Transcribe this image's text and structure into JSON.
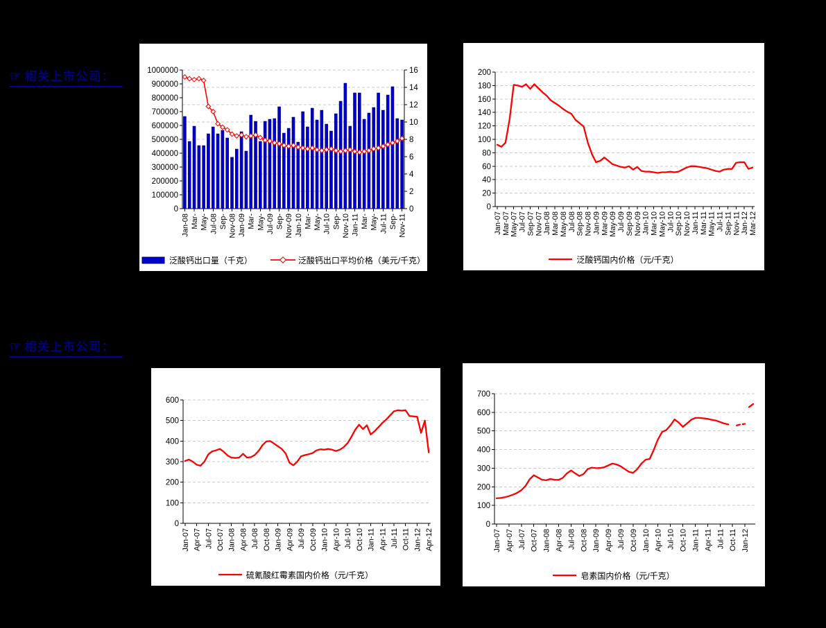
{
  "page": {
    "background_color": "#000000",
    "panel_color": "#FFFFFF"
  },
  "headings": [
    {
      "icon": "☞",
      "text": "相关上市公司："
    },
    {
      "icon": "☞",
      "text": "相关上市公司："
    }
  ],
  "colors": {
    "bar": "#0000CC",
    "bar_edge": "#000060",
    "line": "#FF0000",
    "grid": "#C9C9C9",
    "heading": "#000080"
  },
  "chart_data": [
    {
      "id": "c1",
      "type": "bar",
      "subtype": "bar+line-dual-axis",
      "title": "",
      "xlabel": "",
      "ylabel": "",
      "n_points": 47,
      "x_tick_every": 2,
      "x_tick_labels": [
        "Jan-08",
        "Mar-",
        "May-",
        "Jul-08",
        "Sep-",
        "Nov-08",
        "Jan-09",
        "Mar-",
        "May-",
        "Jul-09",
        "Sep-",
        "Nov-09",
        "Jan-10",
        "Mar-",
        "May-",
        "Jul-10",
        "Sep-",
        "Nov-10",
        "Jan-11",
        "Mar-",
        "May-",
        "Jul-11",
        "Sep-",
        "Nov-11"
      ],
      "left_axis": {
        "min": 0,
        "max": 1000000,
        "step": 100000
      },
      "right_axis": {
        "min": 0,
        "max": 16,
        "step": 2
      },
      "grid_axis": "right",
      "legend_position": "bottom",
      "series": [
        {
          "name": "泛酸钙出口量（千克）",
          "kind": "bar",
          "axis": "left",
          "color": "#0000CC",
          "values": [
            665000,
            485000,
            595000,
            455000,
            455000,
            540000,
            590000,
            540000,
            565000,
            510000,
            370000,
            430000,
            555000,
            415000,
            675000,
            630000,
            485000,
            630000,
            645000,
            650000,
            735000,
            545000,
            580000,
            660000,
            480000,
            700000,
            590000,
            725000,
            640000,
            710000,
            610000,
            560000,
            685000,
            775000,
            905000,
            595000,
            835000,
            835000,
            645000,
            690000,
            730000,
            835000,
            710000,
            820000,
            880000,
            650000,
            640000
          ]
        },
        {
          "name": "泛酸钙出口平均价格（美元/千克）",
          "kind": "line",
          "axis": "right",
          "color": "#FF0000",
          "marker": "diamond",
          "values": [
            15.2,
            15.0,
            14.9,
            15.0,
            14.8,
            11.8,
            11.2,
            9.8,
            9.4,
            9.1,
            8.6,
            8.4,
            8.5,
            8.3,
            8.4,
            8.5,
            8.2,
            7.9,
            7.8,
            7.6,
            7.5,
            7.3,
            7.2,
            7.3,
            7.1,
            7.0,
            6.9,
            7.0,
            6.8,
            6.7,
            6.8,
            6.9,
            6.7,
            6.6,
            6.7,
            6.8,
            6.6,
            6.5,
            6.6,
            6.7,
            6.9,
            7.0,
            7.2,
            7.4,
            7.6,
            7.8,
            8.1
          ]
        }
      ]
    },
    {
      "id": "c2",
      "type": "line",
      "title": "",
      "xlabel": "",
      "ylabel": "",
      "n_points": 63,
      "x_tick_every": 2,
      "x_tick_labels": [
        "Jan-07",
        "Mar-07",
        "May-07",
        "Jul-07",
        "Sep-07",
        "Nov-07",
        "Jan-08",
        "Mar-08",
        "May-08",
        "Jul-08",
        "Sep-08",
        "Nov-08",
        "Jan-09",
        "Mar-09",
        "May-09",
        "Jul-09",
        "Sep-09",
        "Nov-09",
        "Jan-10",
        "Mar-10",
        "May-10",
        "Jul-10",
        "Sep-10",
        "Nov-10",
        "Jan-11",
        "Mar-11",
        "May-11",
        "Jul-11",
        "Sep-11",
        "Nov-11",
        "Jan-12",
        "Mar-12"
      ],
      "left_axis": {
        "min": 0,
        "max": 200,
        "step": 20
      },
      "grid_axis": "left",
      "legend_position": "bottom",
      "series": [
        {
          "name": "泛酸钙国内价格（元/千克）",
          "kind": "line",
          "color": "#FF0000",
          "values": [
            92,
            89,
            95,
            130,
            181,
            180,
            178,
            182,
            175,
            182,
            176,
            170,
            165,
            158,
            154,
            150,
            145,
            141,
            138,
            129,
            124,
            119,
            95,
            78,
            66,
            68,
            73,
            68,
            63,
            61,
            59,
            58,
            60,
            55,
            59,
            53,
            52,
            52,
            51,
            50,
            51,
            51,
            52,
            51,
            52,
            55,
            58,
            60,
            60,
            59,
            58,
            57,
            55,
            53,
            52,
            55,
            56,
            56,
            65,
            66,
            66,
            56,
            58
          ]
        }
      ]
    },
    {
      "id": "c3",
      "type": "line",
      "title": "",
      "xlabel": "",
      "ylabel": "",
      "n_points": 64,
      "x_tick_every": 3,
      "x_tick_labels": [
        "Jan-07",
        "Apr-07",
        "Jul-07",
        "Oct-07",
        "Jan-08",
        "Apr-08",
        "Jul-08",
        "Oct-08",
        "Jan-09",
        "Apr-09",
        "Jul-09",
        "Oct-09",
        "Jan-10",
        "Apr-10",
        "Jul-10",
        "Oct-10",
        "Jan-11",
        "Apr-11",
        "Jul-11",
        "Oct-11",
        "Jan-12",
        "Apr-12"
      ],
      "left_axis": {
        "min": 0,
        "max": 600,
        "step": 100
      },
      "grid_axis": "left",
      "legend_position": "bottom",
      "series": [
        {
          "name": "硫氰酸红霉素国内价格（元/千克）",
          "kind": "line",
          "color": "#FF0000",
          "values": [
            303,
            310,
            300,
            285,
            280,
            300,
            335,
            350,
            355,
            362,
            348,
            330,
            320,
            318,
            320,
            338,
            320,
            322,
            332,
            352,
            380,
            398,
            400,
            388,
            375,
            362,
            340,
            295,
            282,
            300,
            326,
            332,
            336,
            342,
            355,
            360,
            358,
            362,
            358,
            352,
            358,
            370,
            390,
            420,
            455,
            480,
            458,
            477,
            432,
            448,
            468,
            488,
            505,
            525,
            545,
            550,
            548,
            550,
            522,
            520,
            518,
            440,
            500,
            345
          ]
        }
      ]
    },
    {
      "id": "c4",
      "type": "line",
      "title": "",
      "xlabel": "",
      "ylabel": "",
      "n_points": 63,
      "x_tick_every": 3,
      "x_tick_labels": [
        "Jan-07",
        "Apr-07",
        "Jul-07",
        "Oct-07",
        "Jan-08",
        "Apr-08",
        "Jul-08",
        "Oct-08",
        "Jan-09",
        "Apr-09",
        "Jul-09",
        "Oct-09",
        "Jan-10",
        "Apr-10",
        "Jul-10",
        "Oct-10",
        "Jan-11",
        "Apr-11",
        "Jul-11",
        "Oct-11",
        "Jan-12"
      ],
      "left_axis": {
        "min": 0,
        "max": 700,
        "step": 100
      },
      "grid_axis": "left",
      "legend_position": "bottom",
      "series": [
        {
          "name": "皂素国内价格（元/千克）",
          "kind": "line",
          "color": "#FF0000",
          "segments": [
            {
              "from": 0,
              "to": 56,
              "style": "solid"
            },
            {
              "from": 58,
              "to": 60,
              "style": "dashed"
            },
            {
              "from": 61,
              "to": 62,
              "style": "solid"
            }
          ],
          "values": [
            138,
            140,
            144,
            150,
            158,
            168,
            182,
            205,
            240,
            262,
            250,
            238,
            235,
            242,
            238,
            237,
            248,
            272,
            288,
            272,
            258,
            268,
            295,
            303,
            300,
            301,
            305,
            315,
            325,
            320,
            310,
            295,
            280,
            275,
            295,
            325,
            345,
            350,
            400,
            455,
            495,
            505,
            530,
            562,
            545,
            522,
            540,
            560,
            570,
            570,
            568,
            565,
            560,
            556,
            548,
            540,
            535,
            533,
            530,
            535,
            538,
            628,
            645
          ]
        }
      ]
    }
  ]
}
